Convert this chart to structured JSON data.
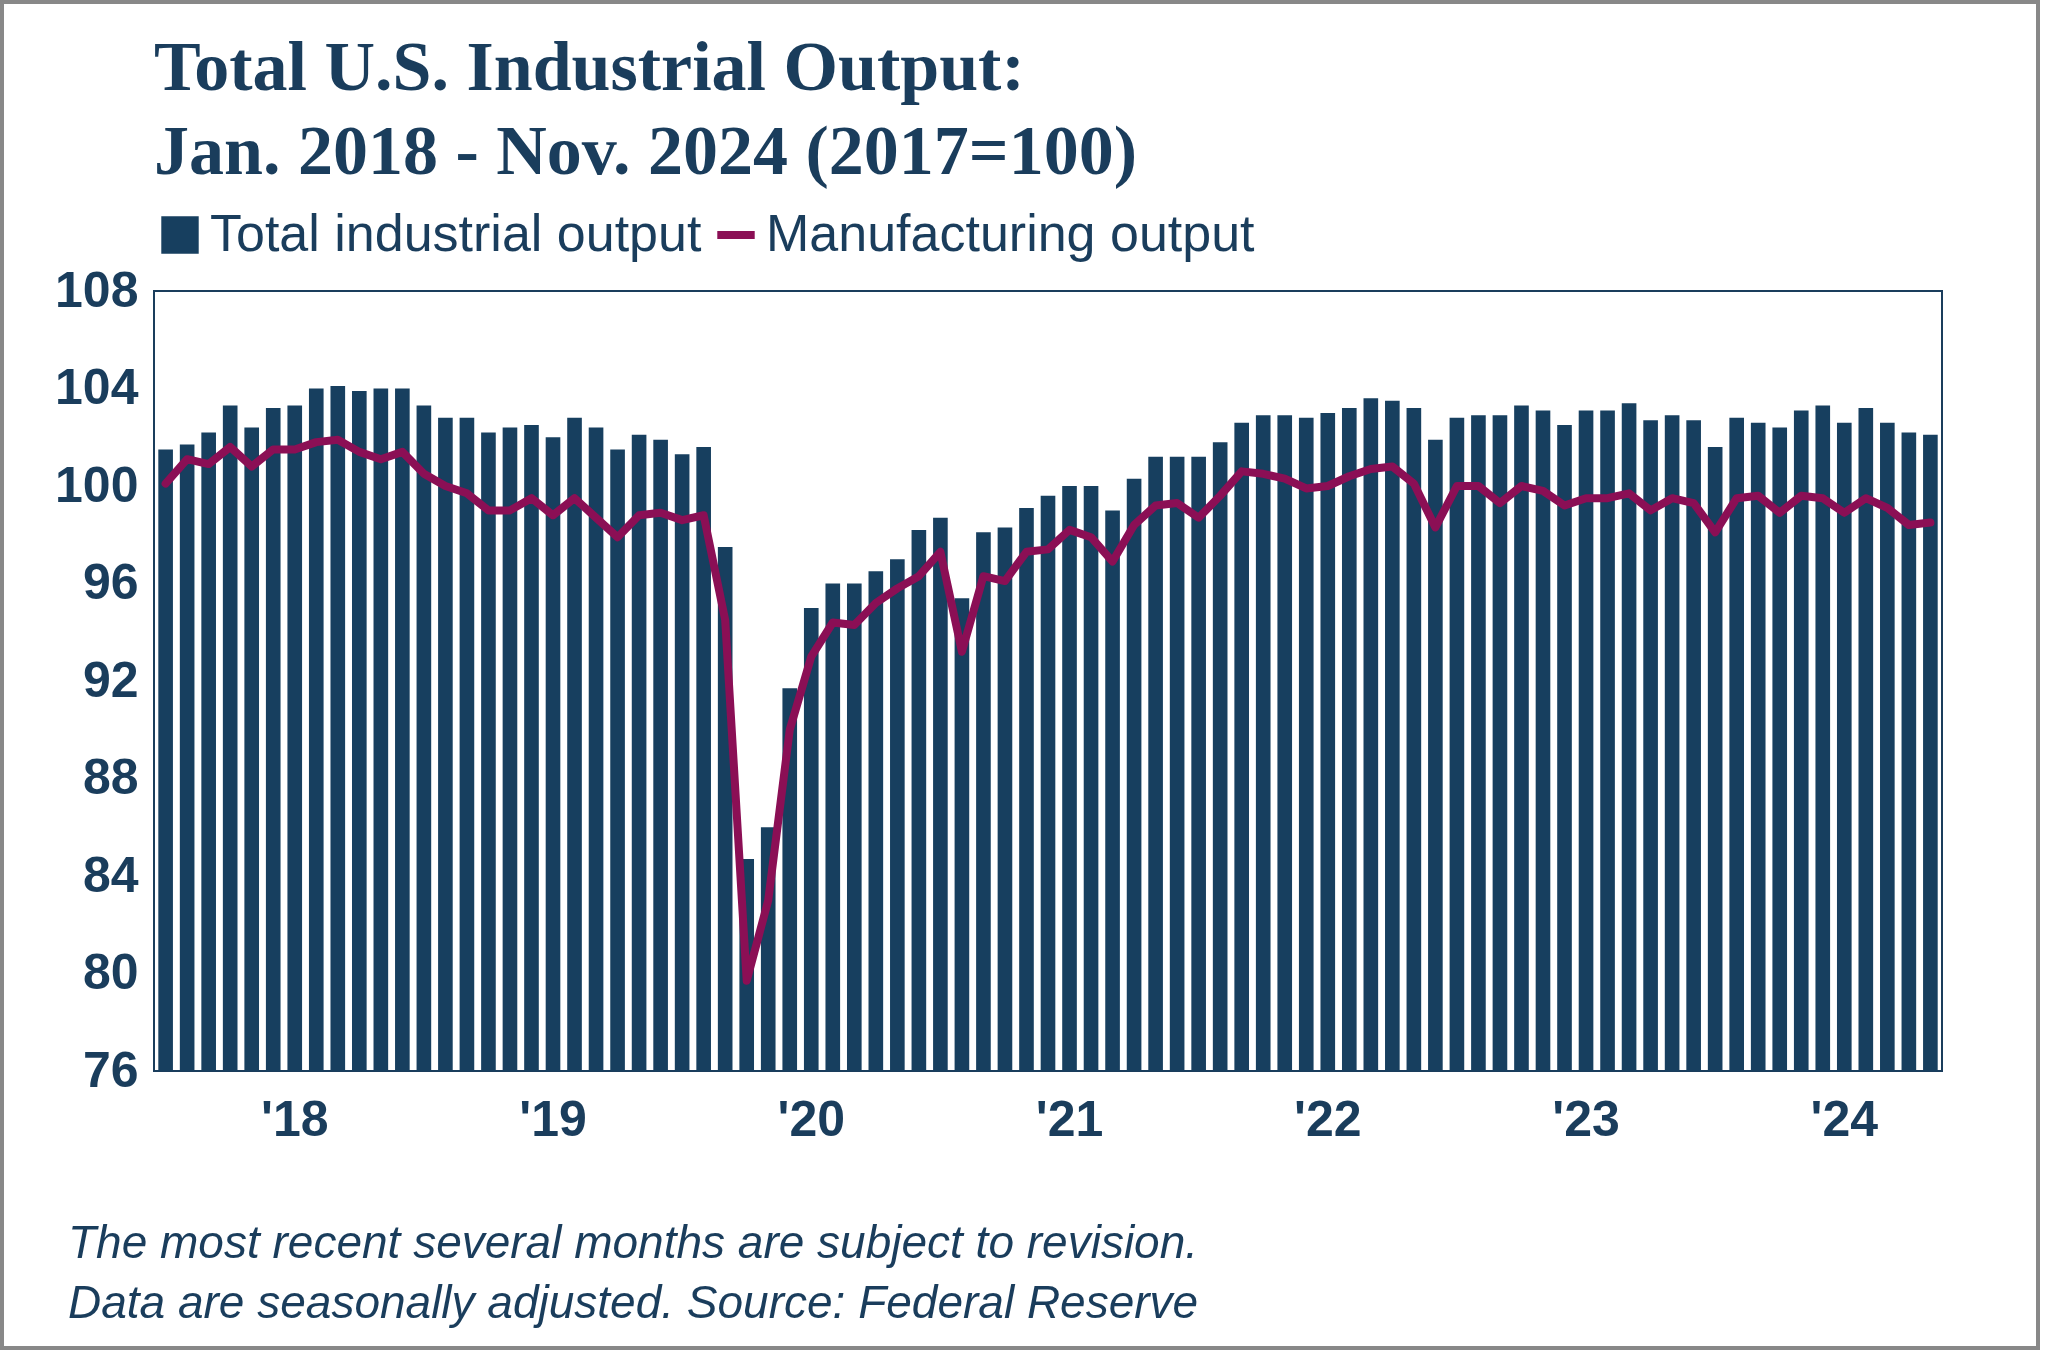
{
  "chart_data": {
    "type": "bar",
    "title": "Total U.S. Industrial Output: Jan. 2018 - Nov. 2024 (2017=100)",
    "categories": [
      null,
      null,
      null,
      null,
      null,
      null,
      "'18",
      null,
      null,
      null,
      null,
      null,
      null,
      null,
      null,
      null,
      null,
      null,
      "'19",
      null,
      null,
      null,
      null,
      null,
      null,
      null,
      null,
      null,
      null,
      null,
      "'20",
      null,
      null,
      null,
      null,
      null,
      null,
      null,
      null,
      null,
      null,
      null,
      "'21",
      null,
      null,
      null,
      null,
      null,
      null,
      null,
      null,
      null,
      null,
      null,
      "'22",
      null,
      null,
      null,
      null,
      null,
      null,
      null,
      null,
      null,
      null,
      null,
      "'23",
      null,
      null,
      null,
      null,
      null,
      null,
      null,
      null,
      null,
      null,
      null,
      "'24",
      null,
      null,
      null,
      null
    ],
    "series": [
      {
        "name": "Total industrial output",
        "color": "#173f5f",
        "values": [
          101.5,
          101.7,
          102.2,
          103.3,
          102.4,
          103.2,
          103.3,
          104.0,
          104.1,
          103.9,
          104.0,
          104.0,
          103.3,
          102.8,
          102.8,
          102.2,
          102.4,
          102.5,
          102.0,
          102.8,
          102.4,
          101.5,
          102.1,
          101.9,
          101.3,
          101.6,
          97.5,
          84.7,
          86.0,
          91.7,
          95.0,
          96.0,
          96.0,
          96.5,
          97.0,
          98.2,
          98.7,
          95.4,
          98.1,
          98.3,
          99.1,
          99.6,
          100.0,
          100.0,
          99.0,
          100.3,
          101.2,
          101.2,
          101.2,
          101.8,
          102.6,
          102.9,
          102.9,
          102.8,
          103.0,
          103.2,
          103.6,
          103.5,
          103.2,
          101.9,
          102.8,
          102.9,
          102.9,
          103.3,
          103.1,
          102.5,
          103.1,
          103.1,
          103.4,
          102.7,
          102.9,
          102.7,
          101.6,
          102.8,
          102.6,
          102.4,
          103.1,
          103.3,
          102.6,
          103.2,
          102.6,
          102.2,
          102.1
        ]
      },
      {
        "name": "Manufacturing output",
        "type": "line",
        "color": "#8b0f55",
        "values": [
          100.1,
          101.1,
          100.9,
          101.6,
          100.8,
          101.5,
          101.5,
          101.8,
          101.9,
          101.4,
          101.1,
          101.4,
          100.5,
          100.0,
          99.7,
          99.0,
          99.0,
          99.5,
          98.8,
          99.5,
          98.7,
          97.9,
          98.8,
          98.9,
          98.6,
          98.8,
          94.5,
          79.7,
          83.0,
          90.0,
          93.0,
          94.4,
          94.3,
          95.2,
          95.8,
          96.3,
          97.3,
          93.2,
          96.3,
          96.1,
          97.3,
          97.4,
          98.2,
          97.9,
          96.9,
          98.4,
          99.2,
          99.3,
          98.7,
          99.6,
          100.6,
          100.5,
          100.3,
          99.9,
          100.0,
          100.4,
          100.7,
          100.8,
          100.1,
          98.3,
          100.0,
          100.0,
          99.3,
          100.0,
          99.8,
          99.2,
          99.5,
          99.5,
          99.7,
          99.0,
          99.5,
          99.3,
          98.1,
          99.5,
          99.6,
          98.9,
          99.6,
          99.5,
          98.9,
          99.5,
          99.1,
          98.4,
          98.5
        ]
      }
    ],
    "ylim": [
      76,
      108
    ],
    "yticks": [
      76,
      80,
      84,
      88,
      92,
      96,
      100,
      104,
      108
    ],
    "grid": false,
    "legend": "top",
    "annotations": [
      "The most recent several months are subject to revision.",
      "Data are seasonally adjusted. Source: Federal Reserve"
    ]
  }
}
